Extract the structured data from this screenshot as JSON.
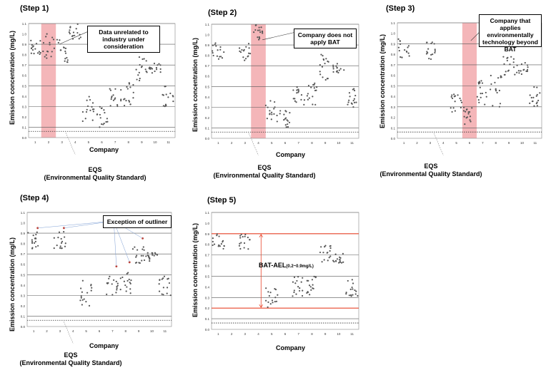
{
  "colors": {
    "highlight": "#f4b6b9",
    "red_line": "#e8452a",
    "grid": "#555555",
    "points": "#555555",
    "outlier": "#c0392b",
    "blue": "#7e9fd4"
  },
  "icons": [
    "dotted-eqs-line",
    "callout-pointer-line"
  ],
  "labels": {
    "ylabel": "Emission concentration (mg/L)",
    "xlabel": "Company",
    "eqs_line1": "EQS",
    "eqs_line2": "(Environmental Quality Standard)"
  },
  "steps": [
    {
      "title": "(Step 1)",
      "callout": "Data unrelated to industry under consideration",
      "eqs": true
    },
    {
      "title": "(Step 2)",
      "callout": "Company does not apply BAT",
      "eqs": true
    },
    {
      "title": "(Step 3)",
      "callout": "Company that applies environmentally technology beyond BAT",
      "eqs": true
    },
    {
      "title": "(Step 4)",
      "callout": "Exception of outliner",
      "eqs": true
    },
    {
      "title": "(Step 5)",
      "callout": "",
      "eqs": false,
      "bat_label": "BAT-AEL",
      "bat_range": "(0.2~0.9mg/L)"
    }
  ],
  "chart_data": [
    {
      "type": "scatter",
      "title": "(Step 1)",
      "xlabel": "Company",
      "ylabel": "Emission concentration (mg/L)",
      "ylim": [
        0,
        1.1
      ],
      "yticks": [
        "0.0",
        "0.1",
        "0.2",
        "0.3",
        "0.4",
        "0.5",
        "0.6",
        "0.7",
        "0.8",
        "0.9",
        "1.0",
        "1.1"
      ],
      "categories": [
        "1",
        "2",
        "3",
        "4",
        "5",
        "6",
        "7",
        "8",
        "9",
        "10",
        "11"
      ],
      "highlight_company": 2,
      "eqs_value": 0.06,
      "companies": [
        {
          "company": 1,
          "min": 0.8,
          "max": 0.95
        },
        {
          "company": 2,
          "min": 0.72,
          "max": 1.0
        },
        {
          "company": 3,
          "min": 0.72,
          "max": 0.95
        },
        {
          "company": 4,
          "min": 0.95,
          "max": 1.1
        },
        {
          "company": 5,
          "min": 0.15,
          "max": 0.4
        },
        {
          "company": 6,
          "min": 0.1,
          "max": 0.3
        },
        {
          "company": 7,
          "min": 0.3,
          "max": 0.5
        },
        {
          "company": 8,
          "min": 0.3,
          "max": 0.55
        },
        {
          "company": 9,
          "min": 0.55,
          "max": 0.82
        },
        {
          "company": 10,
          "min": 0.62,
          "max": 0.72
        },
        {
          "company": 11,
          "min": 0.3,
          "max": 0.5
        }
      ]
    },
    {
      "type": "scatter",
      "title": "(Step 2)",
      "xlabel": "Company",
      "ylabel": "Emission concentration (mg/L)",
      "ylim": [
        0,
        1.1
      ],
      "yticks": [
        "0.0",
        "0.1",
        "0.2",
        "0.3",
        "0.4",
        "0.5",
        "0.6",
        "0.7",
        "0.8",
        "0.9",
        "1.0",
        "1.1"
      ],
      "categories": [
        "1",
        "2",
        "3",
        "4",
        "5",
        "6",
        "7",
        "8",
        "9",
        "10",
        "11"
      ],
      "highlight_company": 4,
      "eqs_value": 0.06,
      "companies": [
        {
          "company": 1,
          "min": 0.75,
          "max": 0.95
        },
        {
          "company": 2,
          "min": null,
          "max": null
        },
        {
          "company": 3,
          "min": 0.75,
          "max": 0.95
        },
        {
          "company": 4,
          "min": 0.95,
          "max": 1.1
        },
        {
          "company": 5,
          "min": 0.15,
          "max": 0.4
        },
        {
          "company": 6,
          "min": 0.1,
          "max": 0.3
        },
        {
          "company": 7,
          "min": 0.3,
          "max": 0.5
        },
        {
          "company": 8,
          "min": 0.3,
          "max": 0.55
        },
        {
          "company": 9,
          "min": 0.55,
          "max": 0.82
        },
        {
          "company": 10,
          "min": 0.62,
          "max": 0.72
        },
        {
          "company": 11,
          "min": 0.3,
          "max": 0.5
        }
      ]
    },
    {
      "type": "scatter",
      "title": "(Step 3)",
      "xlabel": "",
      "ylabel": "Emission concentration (mg/L)",
      "ylim": [
        0,
        1.1
      ],
      "yticks": [
        "0.0",
        "0.1",
        "0.2",
        "0.3",
        "0.4",
        "0.5",
        "0.6",
        "0.7",
        "0.8",
        "0.9",
        "1.0",
        "1.1"
      ],
      "categories": [
        "1",
        "2",
        "3",
        "4",
        "5",
        "6",
        "7",
        "8",
        "9",
        "10",
        "11"
      ],
      "highlight_company": 6,
      "eqs_value": 0.06,
      "companies": [
        {
          "company": 1,
          "min": 0.75,
          "max": 0.95
        },
        {
          "company": 2,
          "min": null,
          "max": null
        },
        {
          "company": 3,
          "min": 0.75,
          "max": 0.95
        },
        {
          "company": 4,
          "min": null,
          "max": null
        },
        {
          "company": 5,
          "min": 0.25,
          "max": 0.45
        },
        {
          "company": 6,
          "min": 0.1,
          "max": 0.3
        },
        {
          "company": 7,
          "min": 0.3,
          "max": 0.55
        },
        {
          "company": 8,
          "min": 0.3,
          "max": 0.6
        },
        {
          "company": 9,
          "min": 0.6,
          "max": 0.8
        },
        {
          "company": 10,
          "min": 0.6,
          "max": 0.72
        },
        {
          "company": 11,
          "min": 0.3,
          "max": 0.5
        }
      ]
    },
    {
      "type": "scatter",
      "title": "(Step 4)",
      "xlabel": "Company",
      "ylabel": "Emission concentration (mg/L)",
      "ylim": [
        0,
        1.1
      ],
      "yticks": [
        "0.0",
        "0.1",
        "0.2",
        "0.3",
        "0.4",
        "0.5",
        "0.6",
        "0.7",
        "0.8",
        "0.9",
        "1.0",
        "1.1"
      ],
      "categories": [
        "1",
        "2",
        "3",
        "4",
        "5",
        "6",
        "7",
        "8",
        "9",
        "10",
        "11"
      ],
      "highlight_company": null,
      "eqs_value": 0.06,
      "outliers": [
        {
          "company": 1,
          "y": 0.95
        },
        {
          "company": 3,
          "y": 0.95
        },
        {
          "company": 7,
          "y": 0.58
        },
        {
          "company": 8,
          "y": 0.62
        },
        {
          "company": 9,
          "y": 0.85
        }
      ],
      "companies": [
        {
          "company": 1,
          "min": 0.75,
          "max": 0.92
        },
        {
          "company": 2,
          "min": null,
          "max": null
        },
        {
          "company": 3,
          "min": 0.75,
          "max": 0.92
        },
        {
          "company": 4,
          "min": null,
          "max": null
        },
        {
          "company": 5,
          "min": 0.2,
          "max": 0.45
        },
        {
          "company": 6,
          "min": null,
          "max": null
        },
        {
          "company": 7,
          "min": 0.3,
          "max": 0.5
        },
        {
          "company": 8,
          "min": 0.3,
          "max": 0.55
        },
        {
          "company": 9,
          "min": 0.6,
          "max": 0.8
        },
        {
          "company": 10,
          "min": 0.62,
          "max": 0.72
        },
        {
          "company": 11,
          "min": 0.3,
          "max": 0.5
        }
      ]
    },
    {
      "type": "scatter",
      "title": "(Step 5)",
      "xlabel": "Company",
      "ylabel": "Emission concentration (mg/L)",
      "ylim": [
        0,
        1.1
      ],
      "yticks": [
        "0.0",
        "0.1",
        "0.2",
        "0.3",
        "0.4",
        "0.5",
        "0.6",
        "0.7",
        "0.8",
        "0.9",
        "1.0",
        "1.1"
      ],
      "categories": [
        "1",
        "2",
        "3",
        "4",
        "5",
        "6",
        "7",
        "8",
        "9",
        "10",
        "11"
      ],
      "highlight_company": null,
      "eqs_value": 0.06,
      "bat_ael": [
        0.2,
        0.9
      ],
      "companies": [
        {
          "company": 1,
          "min": 0.75,
          "max": 0.9
        },
        {
          "company": 2,
          "min": null,
          "max": null
        },
        {
          "company": 3,
          "min": 0.75,
          "max": 0.9
        },
        {
          "company": 4,
          "min": null,
          "max": null
        },
        {
          "company": 5,
          "min": 0.2,
          "max": 0.4
        },
        {
          "company": 6,
          "min": null,
          "max": null
        },
        {
          "company": 7,
          "min": 0.3,
          "max": 0.5
        },
        {
          "company": 8,
          "min": 0.3,
          "max": 0.5
        },
        {
          "company": 9,
          "min": 0.6,
          "max": 0.8
        },
        {
          "company": 10,
          "min": 0.62,
          "max": 0.72
        },
        {
          "company": 11,
          "min": 0.3,
          "max": 0.5
        }
      ]
    }
  ]
}
